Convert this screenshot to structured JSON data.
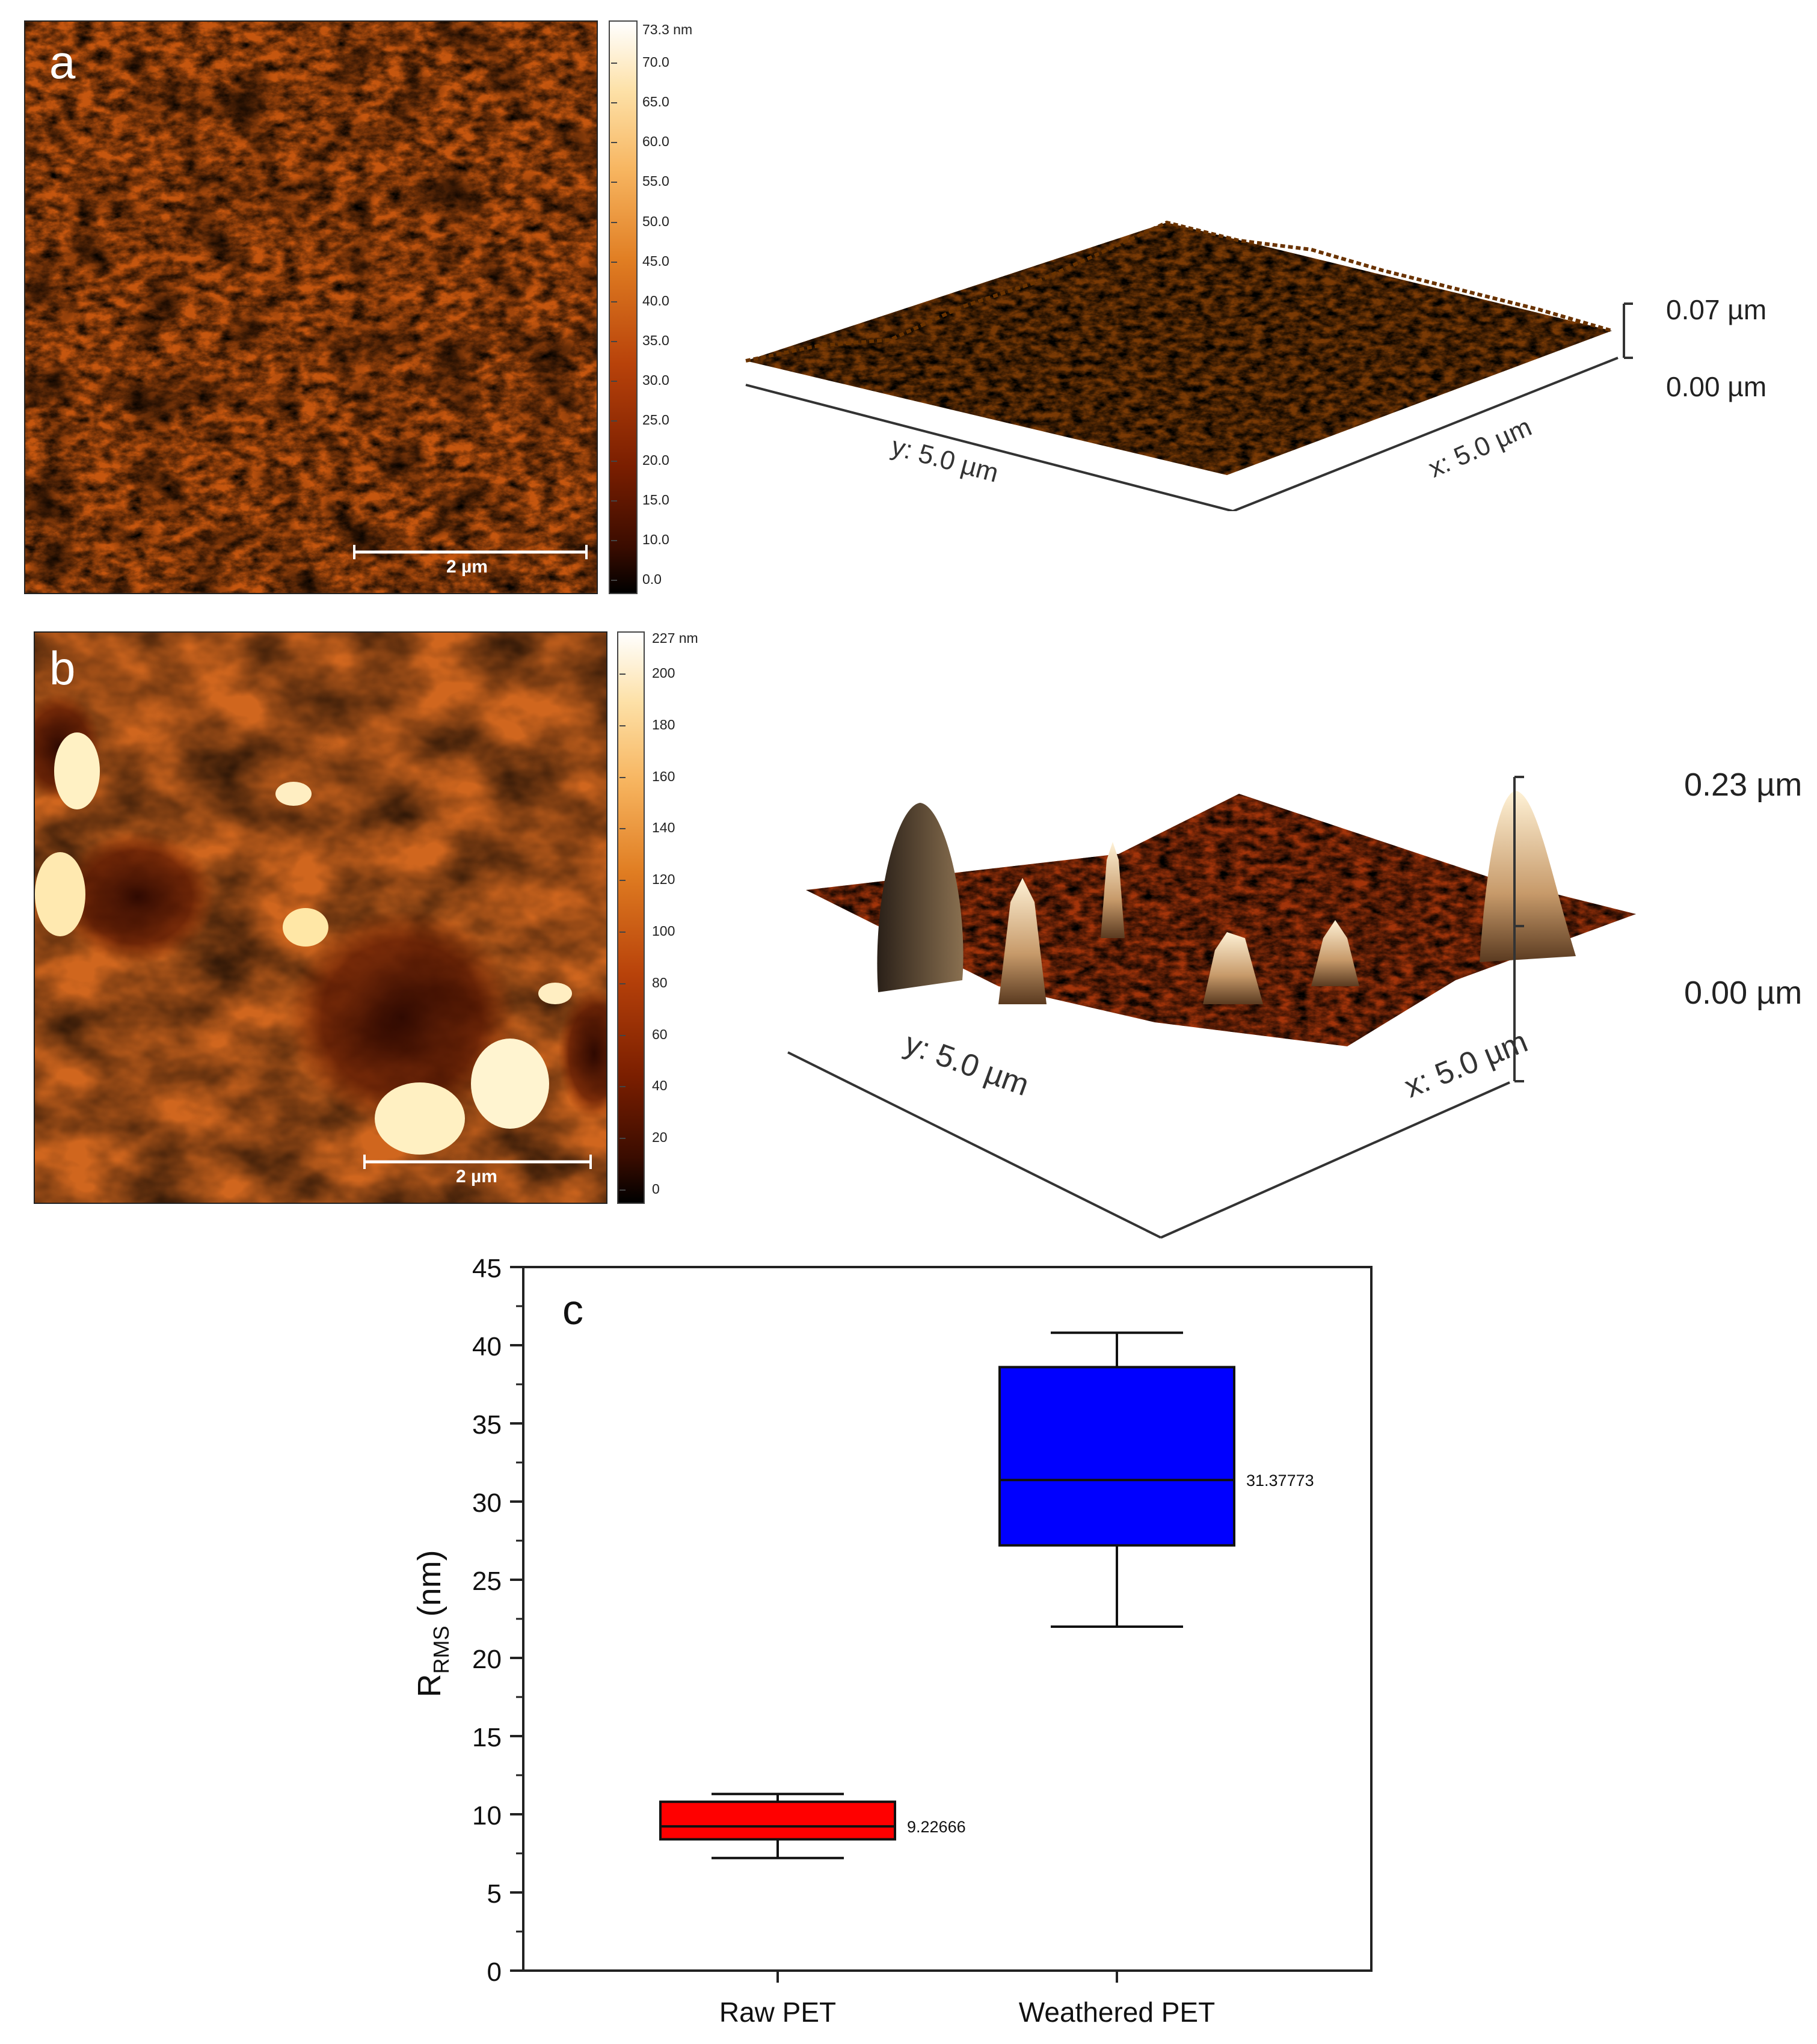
{
  "panel_a": {
    "letter": "a",
    "scale_bar": "2 µm",
    "colorbar_max_label": "73.3 nm",
    "colorbar_ticks": [
      "70.0",
      "65.0",
      "60.0",
      "55.0",
      "50.0",
      "45.0",
      "40.0",
      "35.0",
      "30.0",
      "25.0",
      "20.0",
      "15.0",
      "10.0",
      "0.0"
    ],
    "z_top": "0.07 µm",
    "z_bottom": "0.00 µm",
    "y_axis": "y: 5.0 µm",
    "x_axis": "x: 5.0 µm"
  },
  "panel_b": {
    "letter": "b",
    "scale_bar": "2 µm",
    "colorbar_max_label": "227 nm",
    "colorbar_ticks": [
      "200",
      "180",
      "160",
      "140",
      "120",
      "100",
      "80",
      "60",
      "40",
      "20",
      "0"
    ],
    "z_top": "0.23 µm",
    "z_bottom": "0.00 µm",
    "y_axis": "y: 5.0 µm",
    "x_axis": "x: 5.0 µm"
  },
  "colors": {
    "raw_box": "#ff0000",
    "weathered_box": "#0000ff",
    "afm_dark": "#2a0a00",
    "afm_mid": "#c84a0a",
    "afm_light": "#fff0c0"
  },
  "chart_data": {
    "type": "box",
    "panel_letter": "c",
    "ylabel_main": "R",
    "ylabel_sub": "RMS",
    "ylabel_unit": " (nm)",
    "ylim": [
      0,
      45
    ],
    "yticks": [
      0,
      5,
      10,
      15,
      20,
      25,
      30,
      35,
      40,
      45
    ],
    "categories": [
      "Raw PET",
      "Weathered PET"
    ],
    "boxes": [
      {
        "name": "Raw PET",
        "whisker_low": 7.2,
        "q1": 8.4,
        "median": 9.22666,
        "q3": 10.8,
        "whisker_high": 11.3,
        "median_label": "9.22666",
        "color": "#ff0000"
      },
      {
        "name": "Weathered PET",
        "whisker_low": 22.0,
        "q1": 27.2,
        "median": 31.37773,
        "q3": 38.6,
        "whisker_high": 40.8,
        "median_label": "31.37773",
        "color": "#0000ff"
      }
    ]
  }
}
